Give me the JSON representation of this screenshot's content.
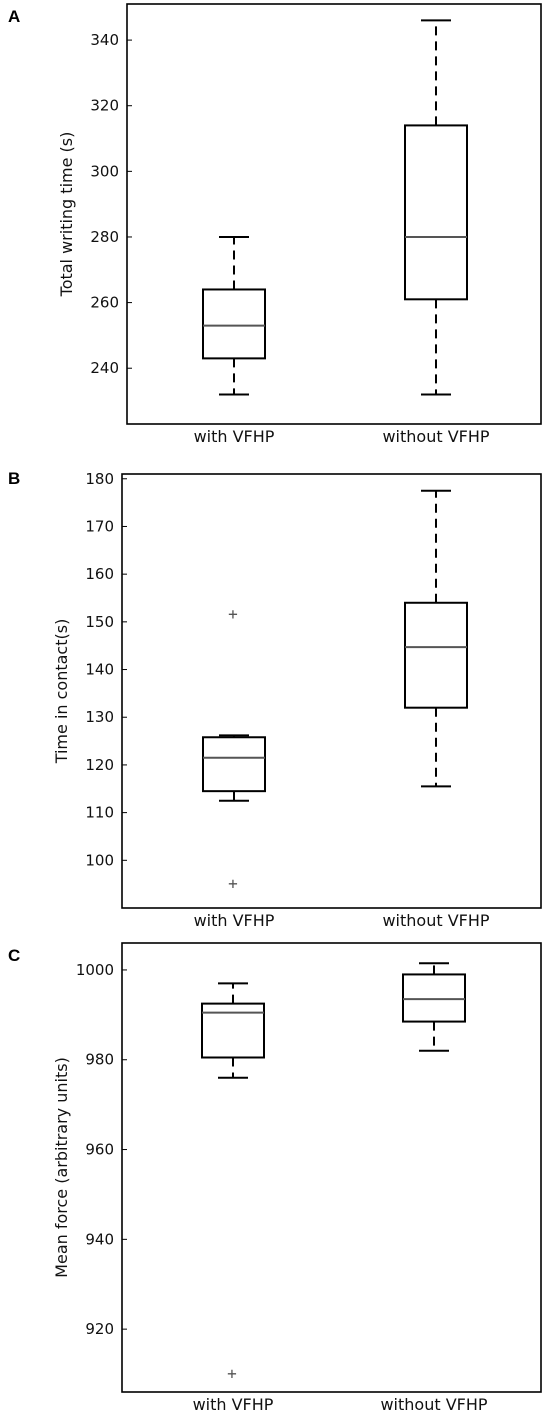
{
  "chart_data": [
    {
      "panel": "A",
      "type": "box",
      "title": "",
      "ylabel": "Total writing time (s)",
      "xlabel": "",
      "ylim": [
        223,
        351
      ],
      "yticks": [
        240,
        260,
        280,
        300,
        320,
        340
      ],
      "grid": false,
      "categories": [
        "with VFHP",
        "without VFHP"
      ],
      "boxes": [
        {
          "whisker_low": 232,
          "q1": 243,
          "median": 253,
          "q3": 264,
          "whisker_high": 280,
          "outliers": []
        },
        {
          "whisker_low": 232,
          "q1": 261,
          "median": 280,
          "q3": 314,
          "whisker_high": 346,
          "outliers": []
        }
      ]
    },
    {
      "panel": "B",
      "type": "box",
      "title": "",
      "ylabel": "Time in contact(s)",
      "xlabel": "",
      "ylim": [
        90,
        181
      ],
      "yticks": [
        100,
        110,
        120,
        130,
        140,
        150,
        160,
        170,
        180
      ],
      "grid": false,
      "categories": [
        "with VFHP",
        "without VFHP"
      ],
      "boxes": [
        {
          "whisker_low": 112.5,
          "q1": 114.5,
          "median": 121.5,
          "q3": 125.8,
          "whisker_high": 126.2,
          "outliers": [
            151.5,
            95
          ]
        },
        {
          "whisker_low": 115.5,
          "q1": 132,
          "median": 144.7,
          "q3": 154,
          "whisker_high": 177.5,
          "outliers": []
        }
      ]
    },
    {
      "panel": "C",
      "type": "box",
      "title": "",
      "ylabel": "Mean force (arbitrary units)",
      "xlabel": "",
      "ylim": [
        906,
        1006
      ],
      "yticks": [
        920,
        940,
        960,
        980,
        1000
      ],
      "grid": false,
      "categories": [
        "with VFHP",
        "without VFHP"
      ],
      "boxes": [
        {
          "whisker_low": 976,
          "q1": 980.5,
          "median": 990.5,
          "q3": 992.5,
          "whisker_high": 997,
          "outliers": [
            910
          ]
        },
        {
          "whisker_low": 982,
          "q1": 988.5,
          "median": 993.5,
          "q3": 999,
          "whisker_high": 1001.5,
          "outliers": []
        }
      ]
    }
  ],
  "outlier_marker": "+"
}
